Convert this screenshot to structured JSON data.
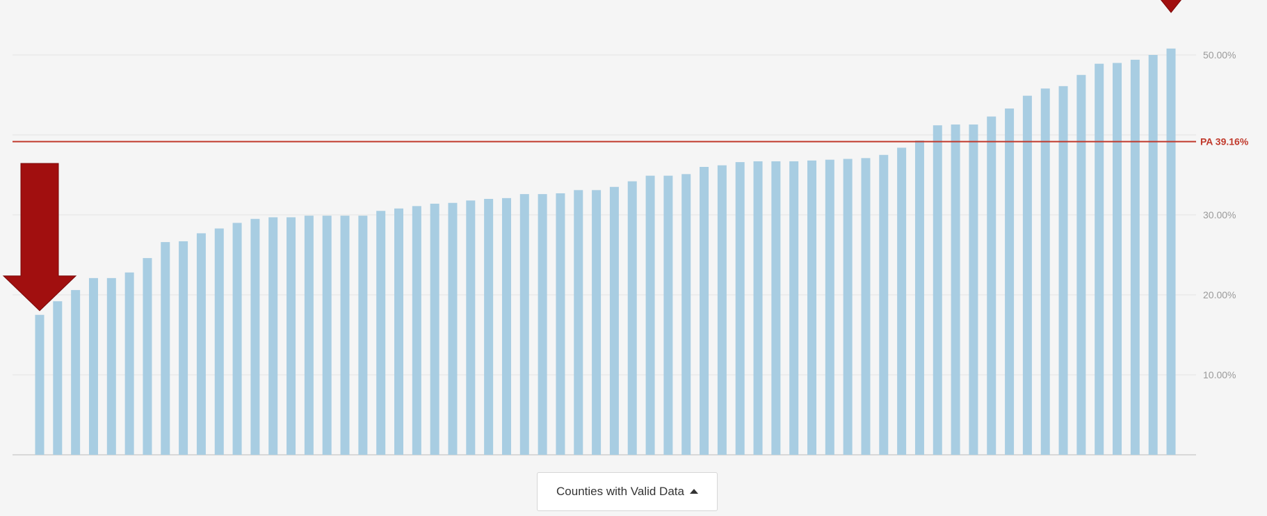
{
  "chart_data": {
    "type": "bar",
    "title": "",
    "xlabel": "",
    "ylabel": "",
    "ylim": [
      0,
      52
    ],
    "y_ticks": [
      "10.00%",
      "20.00%",
      "30.00%",
      "50.00%"
    ],
    "y_tick_values": [
      10,
      20,
      30,
      50
    ],
    "grid": true,
    "y_axis_position": "right",
    "bar_color": "#a8cde2",
    "values": [
      17.5,
      19.2,
      20.6,
      22.1,
      22.1,
      22.8,
      24.6,
      26.6,
      26.7,
      27.7,
      28.3,
      29.0,
      29.5,
      29.7,
      29.7,
      29.9,
      29.9,
      29.9,
      29.9,
      30.5,
      30.8,
      31.1,
      31.4,
      31.5,
      31.8,
      32.0,
      32.1,
      32.6,
      32.6,
      32.7,
      33.1,
      33.1,
      33.5,
      34.2,
      34.9,
      34.9,
      35.1,
      36.0,
      36.2,
      36.6,
      36.7,
      36.7,
      36.7,
      36.8,
      36.9,
      37.0,
      37.1,
      37.5,
      38.4,
      39.3,
      41.2,
      41.3,
      41.3,
      42.3,
      43.3,
      44.9,
      45.8,
      46.1,
      47.5,
      48.9,
      49.0,
      49.4,
      50.0,
      50.8
    ],
    "reference_line": {
      "label": "PA 39.16%",
      "value": 39.16,
      "color": "#c0392b"
    },
    "annotations": [
      {
        "shape": "down-arrow",
        "target_bar": 0,
        "color": "#a10f0f"
      },
      {
        "shape": "down-arrow",
        "target_bar": 63,
        "color": "#a10f0f"
      }
    ]
  },
  "sort_control": {
    "label": "Counties with Valid Data",
    "icon": "caret-up-icon"
  }
}
